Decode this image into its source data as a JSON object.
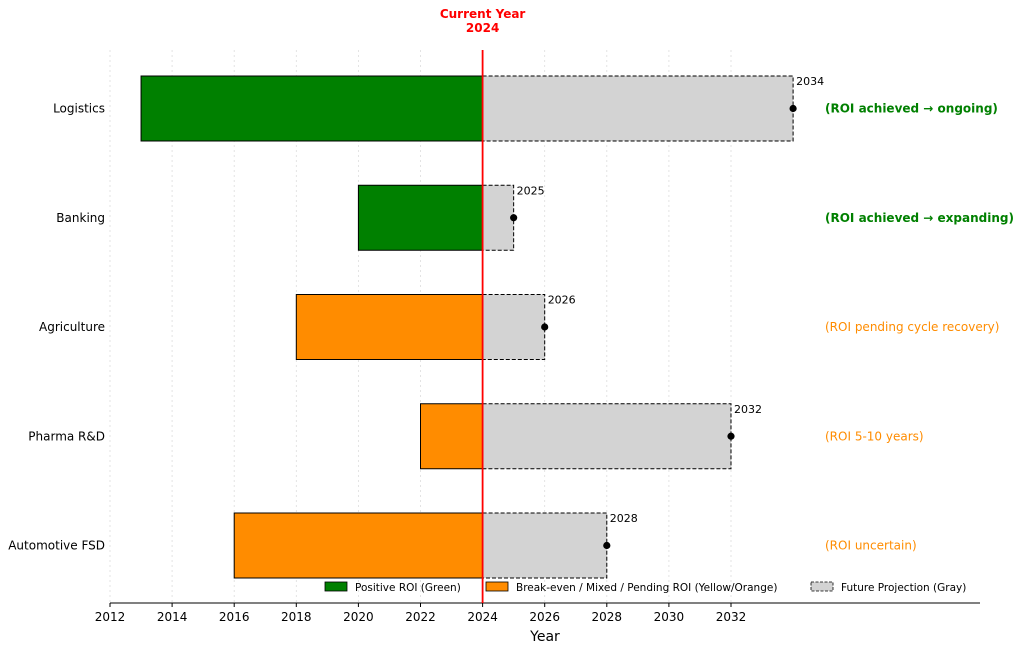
{
  "chart_data": {
    "type": "bar",
    "orientation": "horizontal",
    "xlabel": "Year",
    "xlim": [
      2012,
      2036
    ],
    "xticks": [
      2012,
      2014,
      2016,
      2018,
      2020,
      2022,
      2024,
      2026,
      2028,
      2030,
      2032
    ],
    "grid": "vertical dotted",
    "current_year": {
      "label_line1": "Current Year",
      "label_line2": "2024",
      "value": 2024,
      "color": "#ff0000"
    },
    "categories": [
      "Logistics",
      "Banking",
      "Agriculture",
      "Pharma R&D",
      "Automotive FSD"
    ],
    "bars": [
      {
        "category": "Logistics",
        "start": 2013,
        "end": 2024,
        "status": "positive",
        "projection_end": 2034,
        "projection_label": "2034",
        "roi_note": "(ROI achieved → ongoing)"
      },
      {
        "category": "Banking",
        "start": 2020,
        "end": 2024,
        "status": "positive",
        "projection_end": 2025,
        "projection_label": "2025",
        "roi_note": "(ROI achieved → expanding)"
      },
      {
        "category": "Agriculture",
        "start": 2018,
        "end": 2024,
        "status": "pending",
        "projection_end": 2026,
        "projection_label": "2026",
        "roi_note": "(ROI pending cycle recovery)"
      },
      {
        "category": "Pharma R&D",
        "start": 2022,
        "end": 2024,
        "status": "pending",
        "projection_end": 2032,
        "projection_label": "2032",
        "roi_note": "(ROI 5-10 years)"
      },
      {
        "category": "Automotive FSD",
        "start": 2016,
        "end": 2024,
        "status": "pending",
        "projection_end": 2028,
        "projection_label": "2028",
        "roi_note": "(ROI uncertain)"
      }
    ],
    "colors": {
      "positive": "#008000",
      "pending": "#ff8c00",
      "projection": "#d3d3d3"
    },
    "legend": {
      "placement": "bottom-center",
      "entries": [
        {
          "label": "Positive ROI (Green)",
          "key": "positive"
        },
        {
          "label": "Break-even / Mixed / Pending ROI (Yellow/Orange)",
          "key": "pending"
        },
        {
          "label": "Future Projection (Gray)",
          "key": "projection"
        }
      ]
    }
  }
}
